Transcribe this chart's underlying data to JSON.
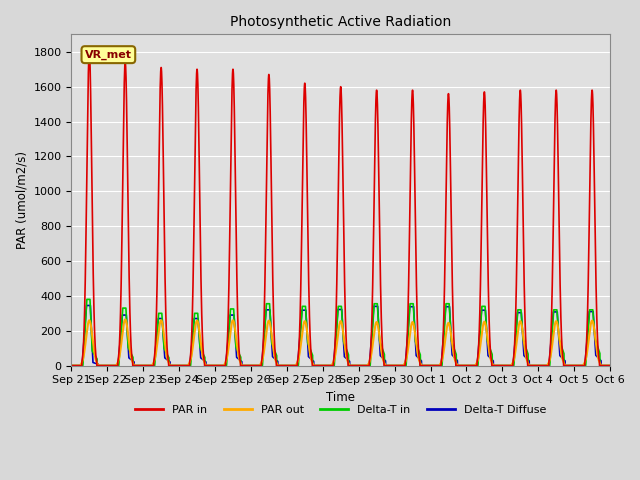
{
  "title": "Photosynthetic Active Radiation",
  "ylabel": "PAR (umol/m2/s)",
  "xlabel": "Time",
  "label_text": "VR_met",
  "ylim": [
    0,
    1900
  ],
  "yticks": [
    0,
    200,
    400,
    600,
    800,
    1000,
    1200,
    1400,
    1600,
    1800
  ],
  "x_tick_labels": [
    "Sep 21",
    "Sep 22",
    "Sep 23",
    "Sep 24",
    "Sep 25",
    "Sep 26",
    "Sep 27",
    "Sep 28",
    "Sep 29",
    "Sep 30",
    "Oct 1",
    "Oct 2",
    "Oct 3",
    "Oct 4",
    "Oct 5",
    "Oct 6"
  ],
  "colors": {
    "PAR_in": "#dd0000",
    "PAR_out": "#ffaa00",
    "Delta_T_in": "#00cc00",
    "Delta_T_Diffuse": "#0000bb",
    "background": "#e0e0e0",
    "grid": "#ffffff"
  },
  "legend_labels": [
    "PAR in",
    "PAR out",
    "Delta-T in",
    "Delta-T Diffuse"
  ],
  "annotation_box_color": "#ffff99",
  "annotation_box_edge": "#886600",
  "annotation_text_color": "#880000",
  "n_days": 15,
  "peaks_PAR_in": [
    1800,
    1740,
    1710,
    1700,
    1700,
    1670,
    1620,
    1600,
    1580,
    1580,
    1560,
    1570,
    1580,
    1580,
    1580
  ],
  "peaks_PAR_out": [
    260,
    265,
    260,
    258,
    260,
    258,
    255,
    255,
    250,
    250,
    245,
    252,
    255,
    255,
    258
  ],
  "peaks_DT_in": [
    380,
    330,
    300,
    300,
    325,
    355,
    340,
    340,
    355,
    355,
    355,
    340,
    320,
    320,
    320
  ],
  "peaks_DT_diff": [
    345,
    290,
    270,
    270,
    290,
    320,
    318,
    322,
    340,
    338,
    338,
    318,
    304,
    308,
    310
  ],
  "base_DT_in": [
    85,
    105,
    100,
    105,
    108,
    128,
    132,
    138,
    143,
    138,
    143,
    143,
    148,
    152,
    155
  ],
  "base_DT_diff": [
    18,
    45,
    45,
    45,
    48,
    52,
    52,
    52,
    58,
    58,
    62,
    58,
    58,
    58,
    60
  ]
}
